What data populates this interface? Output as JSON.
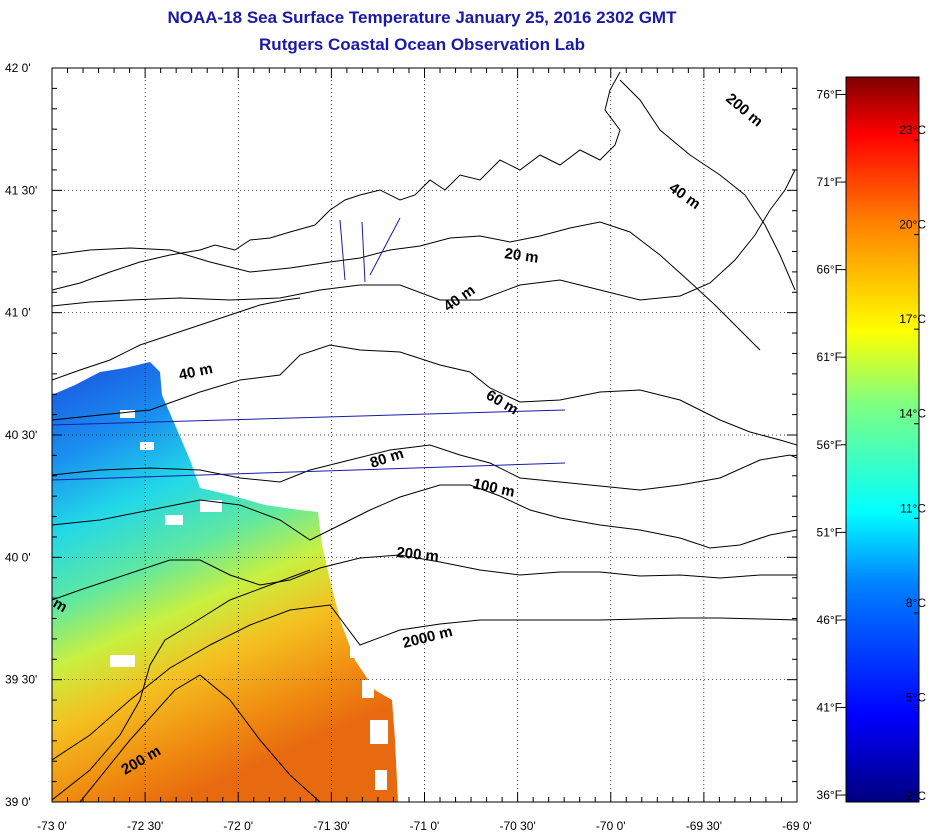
{
  "title": "NOAA-18 Sea Surface Temperature January 25, 2016 2302 GMT",
  "subtitle": "Rutgers Coastal Ocean Observation Lab",
  "map": {
    "lon_ticks": [
      "-73 0'",
      "-72 30'",
      "-72 0'",
      "-71 30'",
      "-71 0'",
      "-70 30'",
      "-70 0'",
      "-69 30'",
      "-69 0'"
    ],
    "lat_ticks": [
      "42 0'",
      "41 30'",
      "41 0'",
      "40 30'",
      "40 0'",
      "39 30'",
      "39 0'"
    ],
    "lon_range": [
      -73,
      -69
    ],
    "lat_range": [
      39,
      42
    ],
    "fahrenheit_ticks": [
      "76°F",
      "71°F",
      "66°F",
      "61°F",
      "56°F",
      "51°F",
      "46°F",
      "41°F",
      "36°F"
    ],
    "contour_labels": [
      {
        "text": "200 m"
      },
      {
        "text": "40 m"
      },
      {
        "text": "20 m"
      },
      {
        "text": "40 m"
      },
      {
        "text": "40 m"
      },
      {
        "text": "60 m"
      },
      {
        "text": "80 m"
      },
      {
        "text": "100 m"
      },
      {
        "text": "200 m"
      },
      {
        "text": "2000 m"
      },
      {
        "text": "200 m"
      },
      {
        "text": "m"
      }
    ]
  },
  "colorbar": {
    "min_c": 2,
    "max_c": 25,
    "celsius_ticks": [
      "23°C",
      "20°C",
      "17°C",
      "14°C",
      "11°C",
      "8°C",
      "5°C",
      "2°C"
    ],
    "colors": {
      "low": "#000080",
      "mid_low": "#0080ff",
      "mid": "#00ffff",
      "mid_high": "#ffff00",
      "high_mid": "#ff8000",
      "high": "#800000"
    }
  }
}
